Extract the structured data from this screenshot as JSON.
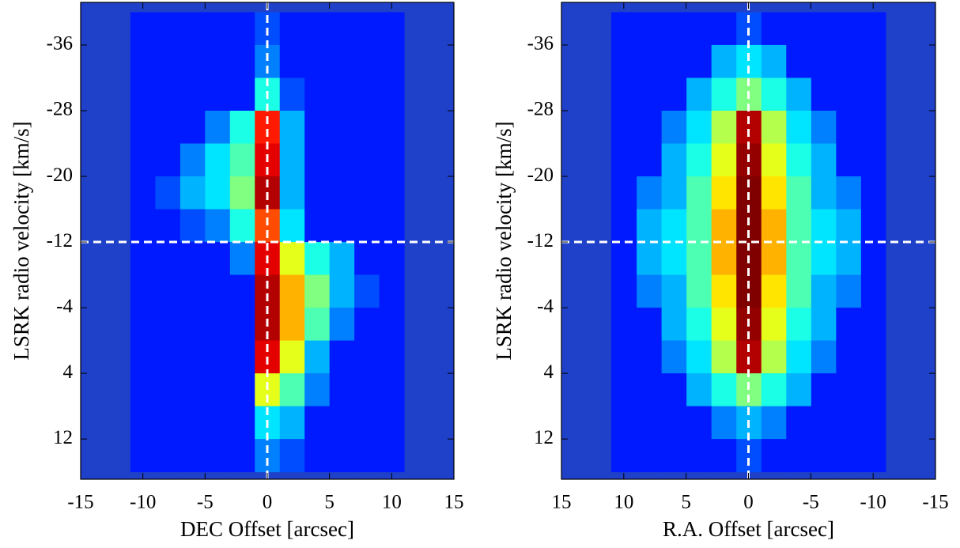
{
  "chart_data": [
    {
      "type": "heatmap",
      "x_label": "DEC Offset [arcsec]",
      "y_label": "LSRK radio velocity [km/s]",
      "xlim": [
        -15,
        15
      ],
      "xticks": [
        -15,
        -10,
        -5,
        0,
        5,
        10,
        15
      ],
      "ylim": [
        16.9,
        -41.2
      ],
      "yticks": [
        -36,
        -28,
        -20,
        -12,
        -4,
        4,
        12
      ],
      "background_color": "#1f40c8",
      "colormap": "jet",
      "zlim": [
        0,
        1
      ],
      "reference_lines": {
        "x": 0,
        "y": -12
      },
      "reference_color": "#ffffff",
      "x": [
        -10,
        -8,
        -6,
        -4,
        -2,
        0,
        2,
        4,
        6,
        8,
        10
      ],
      "y": [
        -38,
        -34,
        -30,
        -26,
        -22,
        -18,
        -14,
        -10,
        -6,
        -2,
        2,
        6,
        10,
        14
      ],
      "z": [
        [
          0.15,
          0.15,
          0.15,
          0.15,
          0.15,
          0.2,
          0.15,
          0.15,
          0.15,
          0.15,
          0.15
        ],
        [
          0.15,
          0.15,
          0.15,
          0.15,
          0.15,
          0.25,
          0.15,
          0.15,
          0.15,
          0.15,
          0.15
        ],
        [
          0.15,
          0.15,
          0.15,
          0.15,
          0.15,
          0.4,
          0.2,
          0.15,
          0.15,
          0.15,
          0.15
        ],
        [
          0.15,
          0.15,
          0.15,
          0.25,
          0.4,
          0.85,
          0.3,
          0.15,
          0.15,
          0.15,
          0.15
        ],
        [
          0.15,
          0.15,
          0.25,
          0.35,
          0.45,
          0.9,
          0.3,
          0.15,
          0.15,
          0.15,
          0.15
        ],
        [
          0.15,
          0.2,
          0.3,
          0.35,
          0.5,
          0.95,
          0.3,
          0.15,
          0.15,
          0.15,
          0.15
        ],
        [
          0.15,
          0.15,
          0.2,
          0.25,
          0.4,
          0.8,
          0.35,
          0.15,
          0.15,
          0.15,
          0.15
        ],
        [
          0.15,
          0.15,
          0.15,
          0.15,
          0.25,
          0.9,
          0.6,
          0.4,
          0.3,
          0.15,
          0.15
        ],
        [
          0.15,
          0.15,
          0.15,
          0.15,
          0.15,
          0.95,
          0.7,
          0.5,
          0.3,
          0.2,
          0.15
        ],
        [
          0.15,
          0.15,
          0.15,
          0.15,
          0.15,
          0.95,
          0.7,
          0.45,
          0.25,
          0.15,
          0.15
        ],
        [
          0.15,
          0.15,
          0.15,
          0.15,
          0.15,
          0.9,
          0.6,
          0.3,
          0.15,
          0.15,
          0.15
        ],
        [
          0.15,
          0.15,
          0.15,
          0.15,
          0.15,
          0.6,
          0.45,
          0.25,
          0.15,
          0.15,
          0.15
        ],
        [
          0.15,
          0.15,
          0.15,
          0.15,
          0.15,
          0.35,
          0.3,
          0.15,
          0.15,
          0.15,
          0.15
        ],
        [
          0.15,
          0.15,
          0.15,
          0.15,
          0.15,
          0.25,
          0.2,
          0.15,
          0.15,
          0.15,
          0.15
        ]
      ]
    },
    {
      "type": "heatmap",
      "x_label": "R.A. Offset [arcsec]",
      "y_label": "LSRK radio velocity [km/s]",
      "xlim": [
        15,
        -15
      ],
      "xticks": [
        15,
        10,
        5,
        0,
        -5,
        -10,
        -15
      ],
      "ylim": [
        16.9,
        -41.2
      ],
      "yticks": [
        -36,
        -28,
        -20,
        -12,
        -4,
        4,
        12
      ],
      "background_color": "#1f40c8",
      "colormap": "jet",
      "zlim": [
        0,
        1
      ],
      "reference_lines": {
        "x": 0,
        "y": -12
      },
      "reference_color": "#ffffff",
      "x": [
        -10,
        -8,
        -6,
        -4,
        -2,
        0,
        2,
        4,
        6,
        8,
        10
      ],
      "y": [
        -38,
        -34,
        -30,
        -26,
        -22,
        -18,
        -14,
        -10,
        -6,
        -2,
        2,
        6,
        10,
        14
      ],
      "z": [
        [
          0.15,
          0.15,
          0.15,
          0.15,
          0.15,
          0.2,
          0.15,
          0.15,
          0.15,
          0.15,
          0.15
        ],
        [
          0.15,
          0.15,
          0.15,
          0.15,
          0.3,
          0.35,
          0.3,
          0.15,
          0.15,
          0.15,
          0.15
        ],
        [
          0.15,
          0.15,
          0.15,
          0.3,
          0.4,
          0.5,
          0.4,
          0.3,
          0.15,
          0.15,
          0.15
        ],
        [
          0.15,
          0.15,
          0.25,
          0.35,
          0.55,
          0.95,
          0.55,
          0.35,
          0.25,
          0.15,
          0.15
        ],
        [
          0.15,
          0.15,
          0.3,
          0.4,
          0.6,
          0.98,
          0.6,
          0.4,
          0.3,
          0.15,
          0.15
        ],
        [
          0.15,
          0.25,
          0.3,
          0.45,
          0.65,
          1,
          0.65,
          0.45,
          0.3,
          0.25,
          0.15
        ],
        [
          0.15,
          0.3,
          0.35,
          0.45,
          0.7,
          1,
          0.7,
          0.45,
          0.35,
          0.3,
          0.15
        ],
        [
          0.15,
          0.3,
          0.35,
          0.45,
          0.7,
          1,
          0.7,
          0.45,
          0.35,
          0.3,
          0.15
        ],
        [
          0.15,
          0.25,
          0.3,
          0.45,
          0.65,
          1,
          0.65,
          0.45,
          0.3,
          0.25,
          0.15
        ],
        [
          0.15,
          0.15,
          0.3,
          0.4,
          0.6,
          0.98,
          0.6,
          0.4,
          0.3,
          0.15,
          0.15
        ],
        [
          0.15,
          0.15,
          0.25,
          0.35,
          0.55,
          0.95,
          0.55,
          0.35,
          0.25,
          0.15,
          0.15
        ],
        [
          0.15,
          0.15,
          0.15,
          0.3,
          0.4,
          0.5,
          0.4,
          0.3,
          0.15,
          0.15,
          0.15
        ],
        [
          0.15,
          0.15,
          0.15,
          0.15,
          0.25,
          0.3,
          0.25,
          0.15,
          0.15,
          0.15,
          0.15
        ],
        [
          0.15,
          0.15,
          0.15,
          0.15,
          0.15,
          0.2,
          0.15,
          0.15,
          0.15,
          0.15,
          0.15
        ]
      ]
    }
  ]
}
